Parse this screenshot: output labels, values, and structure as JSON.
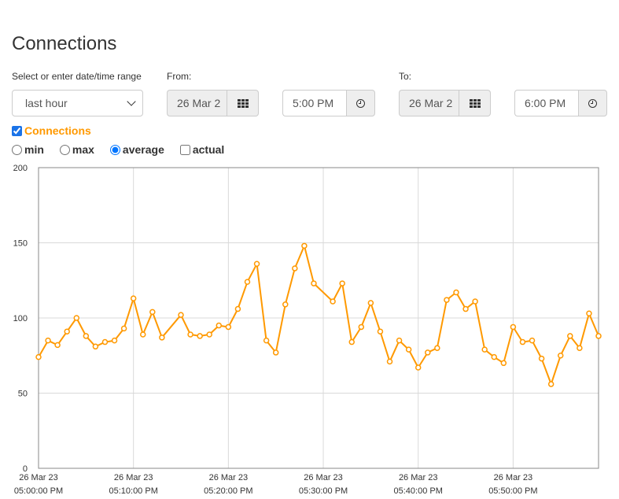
{
  "page": {
    "title": "Connections"
  },
  "controls": {
    "range_label": "Select or enter date/time range",
    "range_value": "last hour",
    "from_label": "From:",
    "from_date": "26 Mar 2",
    "from_time": "5:00 PM",
    "to_label": "To:",
    "to_date": "26 Mar 2",
    "to_time": "6:00 PM"
  },
  "series_toggle": {
    "label": "Connections",
    "checked": true,
    "color": "#ff9900"
  },
  "mode_options": [
    {
      "label": "min",
      "selected": false
    },
    {
      "label": "max",
      "selected": false
    },
    {
      "label": "average",
      "selected": true
    },
    {
      "label": "actual",
      "selected": false
    }
  ],
  "icons": {
    "from_date": "calendar-grid-icon",
    "from_time": "clock-icon",
    "to_date": "calendar-grid-icon",
    "to_time": "clock-icon"
  },
  "chart_data": {
    "type": "line",
    "title": "",
    "xlabel": "",
    "ylabel": "",
    "color": "#ff9900",
    "grid": true,
    "ylim": [
      0,
      200
    ],
    "yticks": [
      0,
      50,
      100,
      150,
      200
    ],
    "xlim_minutes": [
      0,
      59
    ],
    "xticks": [
      {
        "minute": 0,
        "date": "26 Mar 23",
        "time": "05:00:00 PM"
      },
      {
        "minute": 10,
        "date": "26 Mar 23",
        "time": "05:10:00 PM"
      },
      {
        "minute": 20,
        "date": "26 Mar 23",
        "time": "05:20:00 PM"
      },
      {
        "minute": 30,
        "date": "26 Mar 23",
        "time": "05:30:00 PM"
      },
      {
        "minute": 40,
        "date": "26 Mar 23",
        "time": "05:40:00 PM"
      },
      {
        "minute": 50,
        "date": "26 Mar 23",
        "time": "05:50:00 PM"
      }
    ],
    "series": [
      {
        "points": [
          [
            0,
            74
          ],
          [
            1,
            85
          ],
          [
            2,
            82
          ],
          [
            3,
            91
          ],
          [
            4,
            100
          ],
          [
            5,
            88
          ],
          [
            6,
            81
          ],
          [
            7,
            84
          ],
          [
            8,
            85
          ],
          [
            9,
            93
          ],
          [
            10,
            113
          ],
          [
            11,
            89
          ],
          [
            12,
            104
          ],
          [
            13,
            87
          ],
          [
            15,
            102
          ],
          [
            16,
            89
          ],
          [
            17,
            88
          ],
          [
            18,
            89
          ],
          [
            19,
            95
          ],
          [
            20,
            94
          ],
          [
            21,
            106
          ],
          [
            22,
            124
          ],
          [
            23,
            136
          ],
          [
            24,
            85
          ],
          [
            25,
            77
          ],
          [
            26,
            109
          ],
          [
            27,
            133
          ],
          [
            28,
            148
          ],
          [
            29,
            123
          ],
          [
            31,
            111
          ],
          [
            32,
            123
          ],
          [
            33,
            84
          ],
          [
            34,
            94
          ],
          [
            35,
            110
          ],
          [
            36,
            91
          ],
          [
            37,
            71
          ],
          [
            38,
            85
          ],
          [
            39,
            79
          ],
          [
            40,
            67
          ],
          [
            41,
            77
          ],
          [
            42,
            80
          ],
          [
            43,
            112
          ],
          [
            44,
            117
          ],
          [
            45,
            106
          ],
          [
            46,
            111
          ],
          [
            47,
            79
          ],
          [
            48,
            74
          ],
          [
            49,
            70
          ],
          [
            50,
            94
          ],
          [
            51,
            84
          ],
          [
            52,
            85
          ],
          [
            53,
            73
          ],
          [
            54,
            56
          ],
          [
            55,
            75
          ],
          [
            56,
            88
          ],
          [
            57,
            80
          ],
          [
            58,
            103
          ],
          [
            59,
            88
          ]
        ]
      }
    ]
  }
}
